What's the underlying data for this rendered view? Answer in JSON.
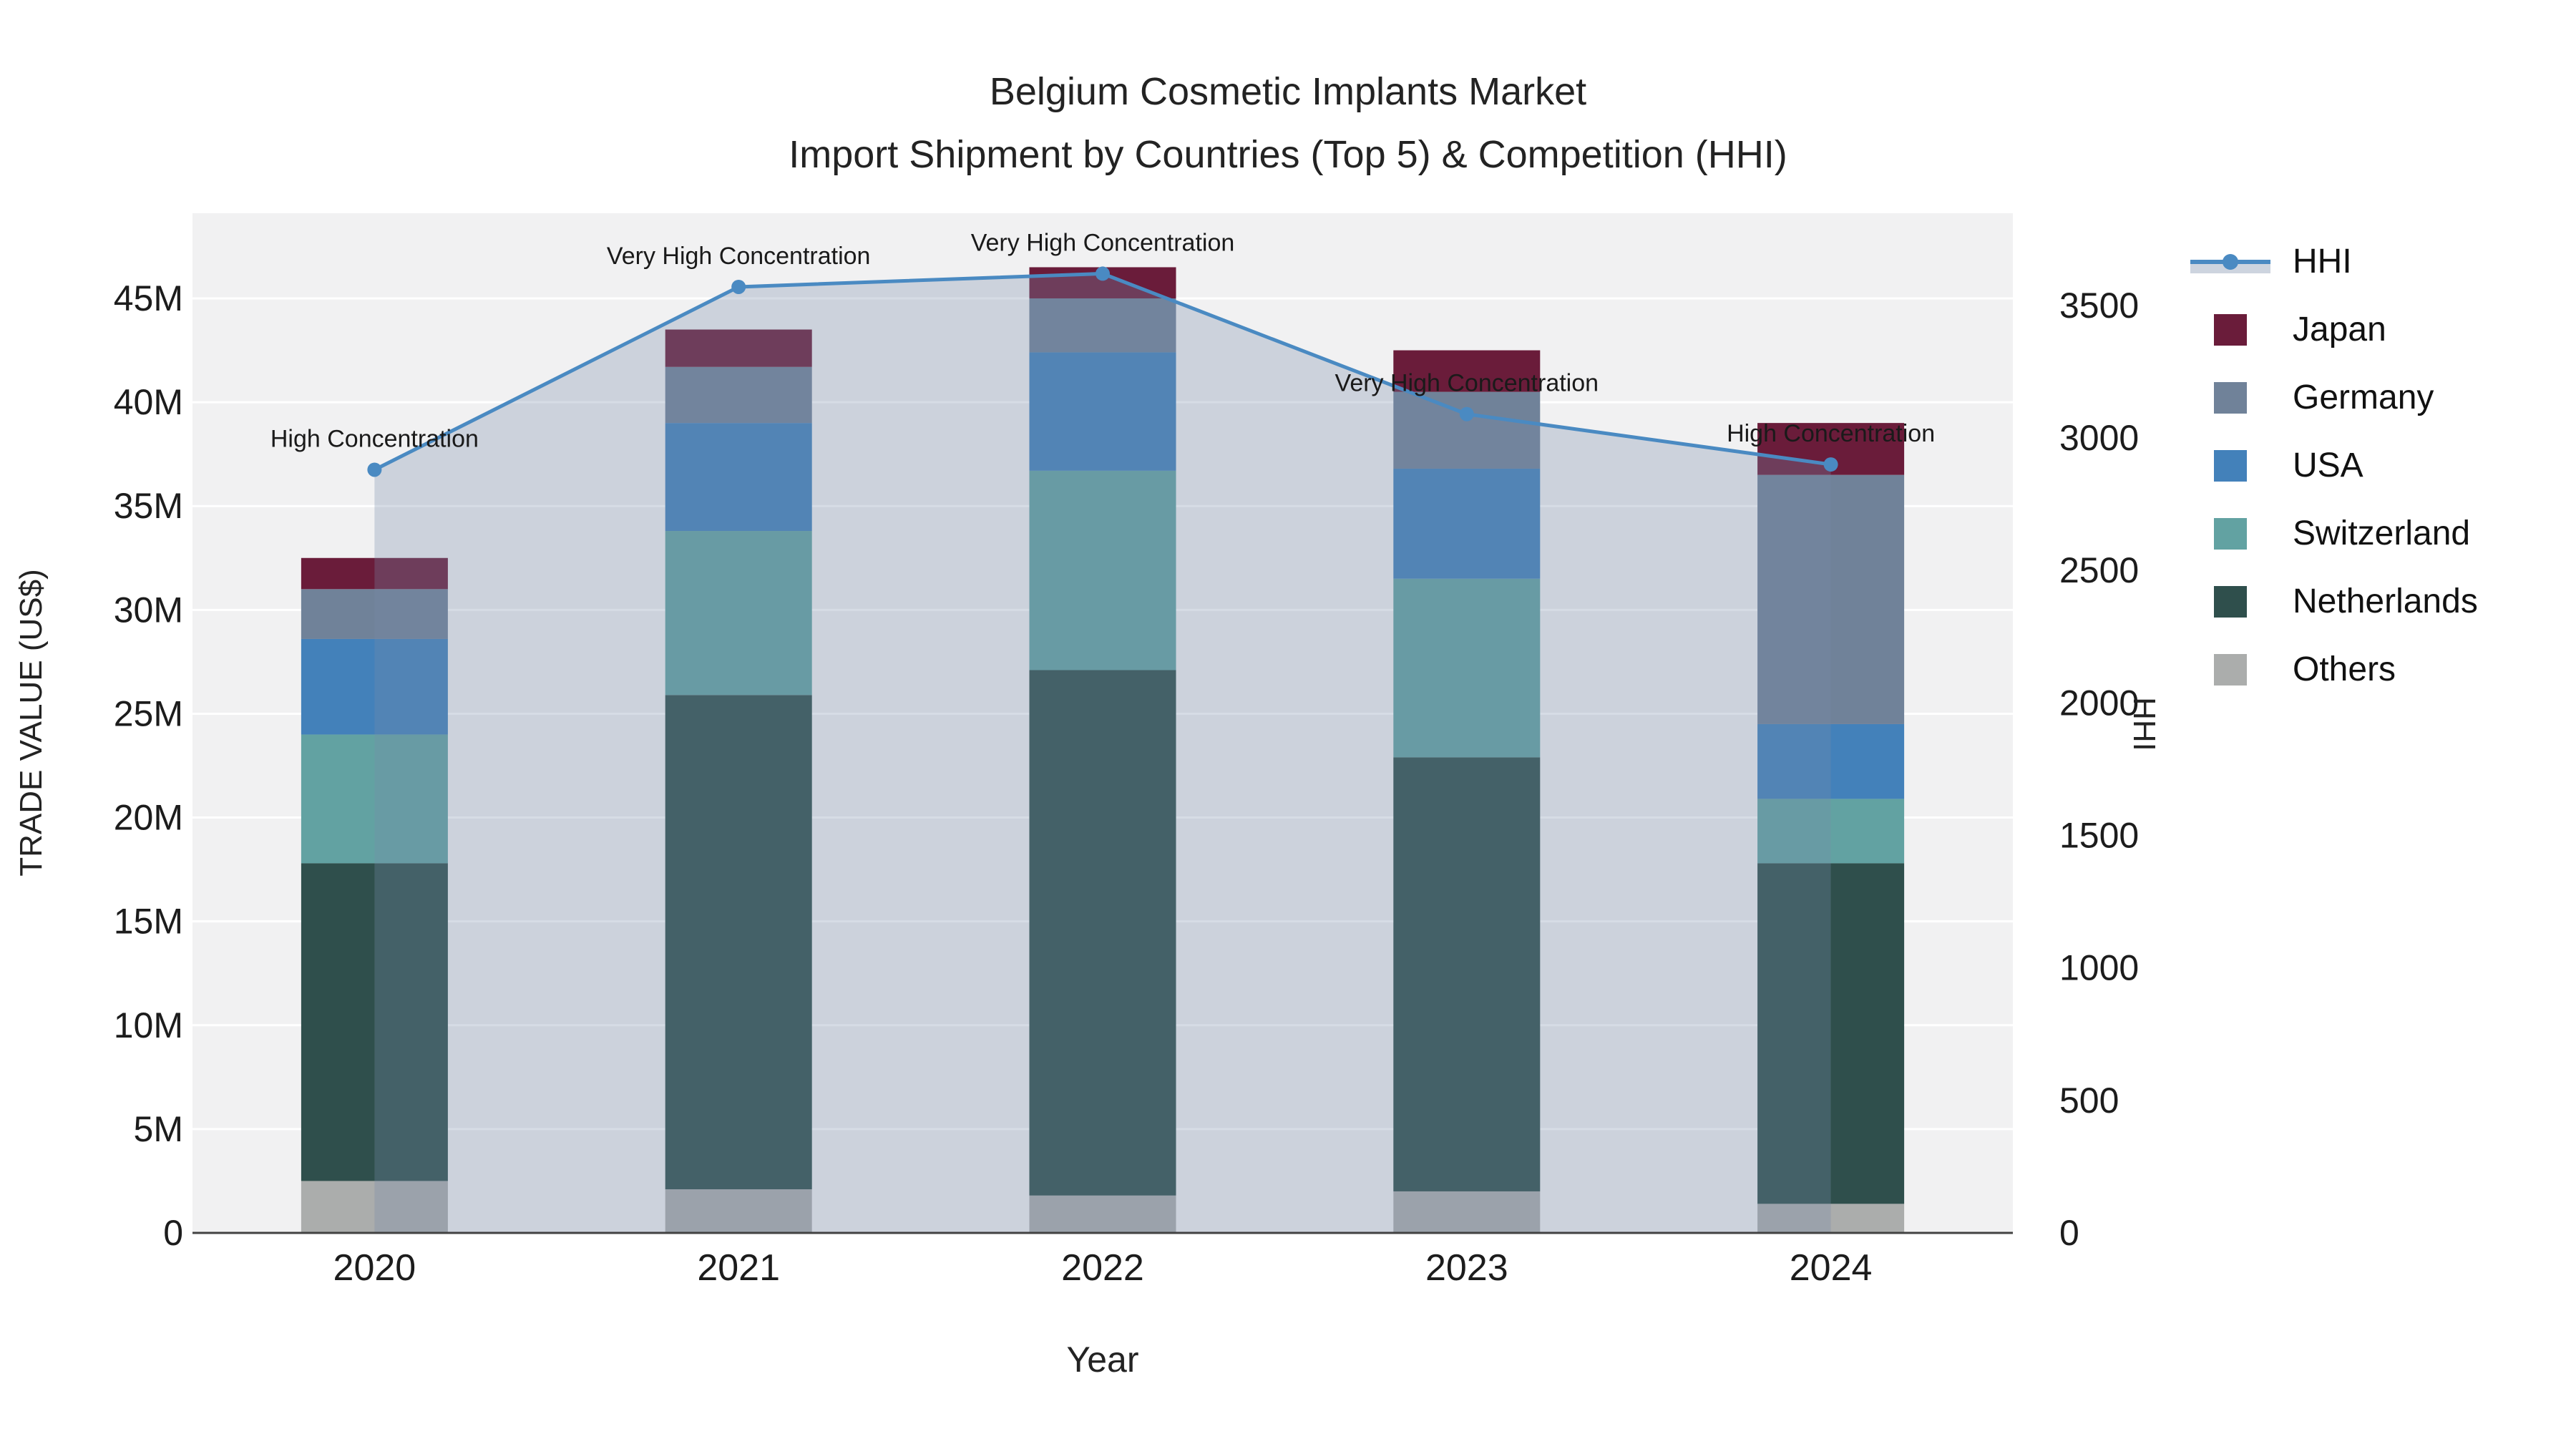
{
  "title": {
    "line1": "Belgium Cosmetic Implants Market",
    "line2": "Import Shipment by Countries (Top 5) & Competition (HHI)"
  },
  "axes": {
    "x_title": "Year",
    "y_left_title": "TRADE VALUE (US$)",
    "y_right_title": "HHI",
    "y_left_ticks": [
      {
        "value": 0,
        "label": "0"
      },
      {
        "value": 5,
        "label": "5M"
      },
      {
        "value": 10,
        "label": "10M"
      },
      {
        "value": 15,
        "label": "15M"
      },
      {
        "value": 20,
        "label": "20M"
      },
      {
        "value": 25,
        "label": "25M"
      },
      {
        "value": 30,
        "label": "30M"
      },
      {
        "value": 35,
        "label": "35M"
      },
      {
        "value": 40,
        "label": "40M"
      },
      {
        "value": 45,
        "label": "45M"
      }
    ],
    "y_right_ticks": [
      {
        "value": 0,
        "label": "0"
      },
      {
        "value": 500,
        "label": "500"
      },
      {
        "value": 1000,
        "label": "1000"
      },
      {
        "value": 1500,
        "label": "1500"
      },
      {
        "value": 2000,
        "label": "2000"
      },
      {
        "value": 2500,
        "label": "2500"
      },
      {
        "value": 3000,
        "label": "3000"
      },
      {
        "value": 3500,
        "label": "3500"
      }
    ],
    "y_left_max": 49.1,
    "y_right_max": 3848,
    "grid": true
  },
  "chart_data": {
    "type": "bar",
    "stacked": true,
    "categories": [
      "2020",
      "2021",
      "2022",
      "2023",
      "2024"
    ],
    "unit": "millions USD",
    "series": [
      {
        "name": "Others",
        "color": "#abadac",
        "values": [
          2.5,
          2.1,
          1.8,
          2.0,
          1.4
        ]
      },
      {
        "name": "Netherlands",
        "color": "#2f4f4c",
        "values": [
          15.3,
          23.8,
          25.3,
          20.9,
          16.4
        ]
      },
      {
        "name": "Switzerland",
        "color": "#62a2a2",
        "values": [
          6.2,
          7.9,
          9.6,
          8.6,
          3.1
        ]
      },
      {
        "name": "USA",
        "color": "#4381ba",
        "values": [
          4.6,
          5.2,
          5.7,
          5.3,
          3.6
        ]
      },
      {
        "name": "Germany",
        "color": "#708299",
        "values": [
          2.4,
          2.7,
          2.6,
          3.7,
          12.0
        ]
      },
      {
        "name": "Japan",
        "color": "#6a1c3a",
        "values": [
          1.5,
          1.8,
          1.5,
          2.0,
          2.5
        ]
      }
    ],
    "totals": [
      32.5,
      43.5,
      46.5,
      42.5,
      39.0
    ],
    "line_series": {
      "name": "HHI",
      "axis": "right",
      "values": [
        2880,
        3570,
        3620,
        3090,
        2900
      ],
      "color": "#4a8ac2",
      "area_fill": "rgba(120,140,170,0.30)"
    },
    "annotations": [
      {
        "category": "2020",
        "text": "High Concentration"
      },
      {
        "category": "2021",
        "text": "Very High Concentration"
      },
      {
        "category": "2022",
        "text": "Very High Concentration"
      },
      {
        "category": "2023",
        "text": "Very High Concentration"
      },
      {
        "category": "2024",
        "text": "High Concentration"
      }
    ],
    "legend_position": "right",
    "plot_bg": "#f1f1f2",
    "gridline_color": "#ffffff",
    "axisline_color": "#424242"
  },
  "legend": {
    "items": [
      {
        "label": "HHI",
        "type": "line",
        "color": "#4a8ac2",
        "fill_sample": "#cdd4df"
      },
      {
        "label": "Japan",
        "type": "box",
        "color": "#6a1c3a"
      },
      {
        "label": "Germany",
        "type": "box",
        "color": "#708299"
      },
      {
        "label": "USA",
        "type": "box",
        "color": "#4381ba"
      },
      {
        "label": "Switzerland",
        "type": "box",
        "color": "#62a2a2"
      },
      {
        "label": "Netherlands",
        "type": "box",
        "color": "#2f4f4c"
      },
      {
        "label": "Others",
        "type": "box",
        "color": "#abadac"
      }
    ]
  }
}
